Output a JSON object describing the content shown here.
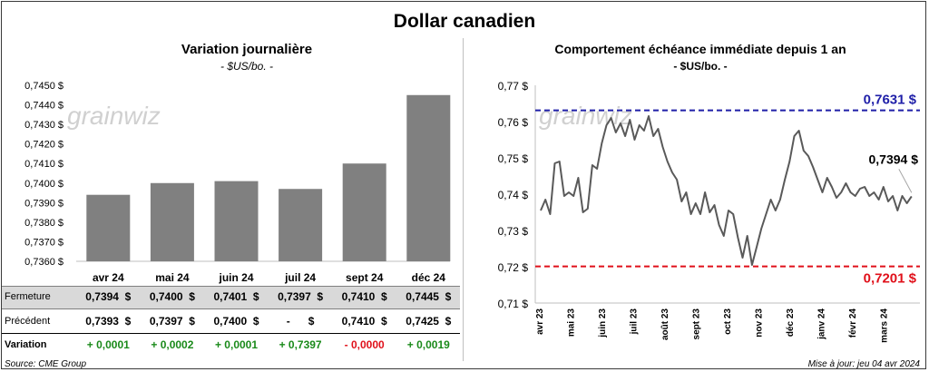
{
  "title": "Dollar canadien",
  "left": {
    "title": "Variation  journalière",
    "unit": "- $US/bo. -",
    "watermark": "grainwiz",
    "yticks": [
      "0,7450 $",
      "0,7440 $",
      "0,7430 $",
      "0,7420 $",
      "0,7410 $",
      "0,7400 $",
      "0,7390 $",
      "0,7380 $",
      "0,7370 $",
      "0,7360 $"
    ],
    "table": {
      "row_labels": [
        "Fermeture",
        "Précédent",
        "Variation"
      ],
      "fermeture": [
        "0,7394  $",
        "0,7400  $",
        "0,7401  $",
        "0,7397  $",
        "0,7410  $",
        "0,7445  $"
      ],
      "precedent": [
        "0,7393  $",
        "0,7397  $",
        "0,7400  $",
        "-      $",
        "0,7410  $",
        "0,7425  $"
      ],
      "variation": [
        "+ 0,0001",
        "+ 0,0002",
        "+ 0,0001",
        "+ 0,7397",
        "- 0,0000",
        "+ 0,0019"
      ]
    }
  },
  "right": {
    "title": "Comportement échéance immédiate depuis 1 an",
    "unit": "- $US/bo. -",
    "watermark": "grainwiz",
    "yticks": [
      "0,77 $",
      "0,76 $",
      "0,75 $",
      "0,74 $",
      "0,73 $",
      "0,72 $",
      "0,71 $"
    ],
    "high_label": "0,7631  $",
    "low_label": "0,7201  $",
    "last_label": "0,7394 $"
  },
  "footer": {
    "source": "Source: CME Group",
    "update": "Mise à jour: jeu 04 avr 2024"
  },
  "colors": {
    "bar": "#808080",
    "line": "#595959",
    "high": "#1f1fa8",
    "low": "#e0101a",
    "positive": "#1a8a1a",
    "negative": "#e0101a",
    "table_shade": "#d9d9d9"
  },
  "chart_data": [
    {
      "type": "bar",
      "title": "Variation  journalière",
      "ylabel": "- $US/bo. -",
      "categories": [
        "avr 24",
        "mai 24",
        "juin 24",
        "juil 24",
        "sept 24",
        "déc 24"
      ],
      "values": [
        0.7394,
        0.74,
        0.7401,
        0.7397,
        0.741,
        0.7445
      ],
      "ylim": [
        0.736,
        0.745
      ],
      "grid": false
    },
    {
      "type": "line",
      "title": "Comportement échéance immédiate depuis 1 an",
      "ylabel": "- $US/bo. -",
      "ylim": [
        0.71,
        0.77
      ],
      "x_categories": [
        "avr 23",
        "mai 23",
        "juin 23",
        "juil 23",
        "août 23",
        "sept 23",
        "oct 23",
        "nov 23",
        "déc 23",
        "janv 24",
        "févr 24",
        "mars 24"
      ],
      "series": [
        {
          "x": [
            0,
            0.15,
            0.3,
            0.45,
            0.6,
            0.75,
            0.9,
            1.05,
            1.2,
            1.35,
            1.5,
            1.65,
            1.8,
            1.95,
            2.1,
            2.25,
            2.4,
            2.55,
            2.7,
            2.85,
            3.0,
            3.15,
            3.3,
            3.45,
            3.6,
            3.75,
            3.9,
            4.05,
            4.2,
            4.35,
            4.5,
            4.65,
            4.8,
            4.95,
            5.1,
            5.25,
            5.4,
            5.55,
            5.7,
            5.85,
            6.0,
            6.15,
            6.3,
            6.45,
            6.6,
            6.75,
            6.9,
            7.05,
            7.2,
            7.35,
            7.5,
            7.65,
            7.8,
            7.95,
            8.1,
            8.25,
            8.4,
            8.55,
            8.7,
            8.85,
            9.0,
            9.15,
            9.3,
            9.45,
            9.6,
            9.75,
            9.9,
            10.05,
            10.2,
            10.35,
            10.5,
            10.65,
            10.8,
            10.95,
            11.1,
            11.25,
            11.4,
            11.55,
            11.7,
            11.85
          ],
          "values": [
            0.7355,
            0.7385,
            0.7345,
            0.7485,
            0.749,
            0.7395,
            0.7405,
            0.7395,
            0.7445,
            0.735,
            0.736,
            0.748,
            0.747,
            0.754,
            0.759,
            0.761,
            0.757,
            0.7595,
            0.756,
            0.7605,
            0.755,
            0.759,
            0.7575,
            0.7615,
            0.756,
            0.758,
            0.753,
            0.749,
            0.746,
            0.744,
            0.738,
            0.7405,
            0.7345,
            0.7375,
            0.7345,
            0.7405,
            0.735,
            0.737,
            0.7315,
            0.7285,
            0.7355,
            0.7345,
            0.728,
            0.7225,
            0.7285,
            0.7205,
            0.7255,
            0.7305,
            0.7345,
            0.7385,
            0.7355,
            0.7385,
            0.744,
            0.749,
            0.756,
            0.7575,
            0.752,
            0.7505,
            0.7475,
            0.744,
            0.7405,
            0.7445,
            0.742,
            0.739,
            0.7405,
            0.743,
            0.7405,
            0.7395,
            0.7415,
            0.742,
            0.7395,
            0.7405,
            0.7385,
            0.742,
            0.738,
            0.7395,
            0.7355,
            0.7395,
            0.7375,
            0.7394
          ]
        }
      ],
      "hlines": [
        {
          "value": 0.7631,
          "label": "0,7631  $",
          "color": "#1f1fa8"
        },
        {
          "value": 0.7201,
          "label": "0,7201  $",
          "color": "#e0101a"
        }
      ],
      "annotation": "0,7394 $"
    }
  ]
}
